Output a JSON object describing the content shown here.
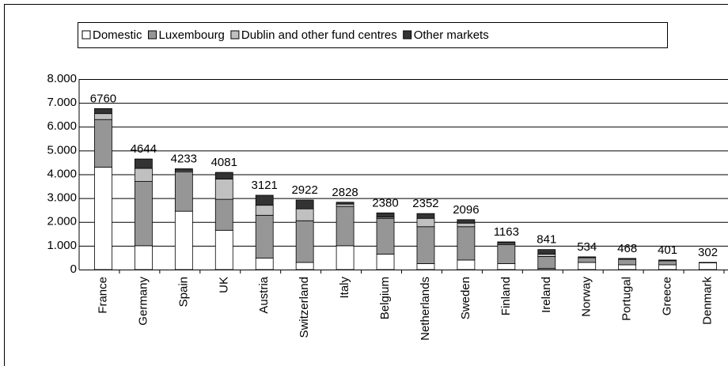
{
  "chart_data": {
    "type": "stacked_bar",
    "categories": [
      "France",
      "Germany",
      "Spain",
      "UK",
      "Austria",
      "Switzerland",
      "Italy",
      "Belgium",
      "Netherlands",
      "Sweden",
      "Finland",
      "Ireland",
      "Norway",
      "Portugal",
      "Greece",
      "Denmark"
    ],
    "series": [
      {
        "name": "Domestic",
        "color": "#ffffff",
        "values": [
          4300,
          1000,
          2450,
          1650,
          480,
          300,
          1000,
          650,
          250,
          400,
          250,
          50,
          300,
          200,
          200,
          280
        ]
      },
      {
        "name": "Luxembourg",
        "color": "#969696",
        "values": [
          2000,
          2700,
          1650,
          1300,
          1800,
          1750,
          1650,
          1500,
          1550,
          1400,
          800,
          500,
          200,
          230,
          170,
          10
        ]
      },
      {
        "name": "Dublin and other fund centres",
        "color": "#c0c0c0",
        "values": [
          250,
          550,
          50,
          850,
          420,
          500,
          100,
          50,
          350,
          150,
          50,
          100,
          0,
          0,
          0,
          5
        ]
      },
      {
        "name": "Other markets",
        "color": "#333333",
        "values": [
          210,
          394,
          83,
          281,
          421,
          372,
          78,
          180,
          202,
          146,
          63,
          191,
          34,
          38,
          31,
          7
        ]
      }
    ],
    "totals": [
      6760,
      4644,
      4233,
      4081,
      3121,
      2922,
      2828,
      2380,
      2352,
      2096,
      1163,
      841,
      534,
      468,
      401,
      302
    ],
    "ylim": [
      0,
      8000
    ],
    "yticks": [
      0,
      {
        "value": 1000,
        "label": "1.000"
      },
      {
        "value": 2000,
        "label": "2.000"
      },
      {
        "value": 3000,
        "label": "3.000"
      },
      {
        "value": 4000,
        "label": "4.000"
      },
      {
        "value": 5000,
        "label": "5.000"
      },
      {
        "value": 6000,
        "label": "6.000"
      },
      {
        "value": 7000,
        "label": "7.000"
      },
      {
        "value": 8000,
        "label": "8.000"
      }
    ],
    "grid": true,
    "legend": "top"
  }
}
